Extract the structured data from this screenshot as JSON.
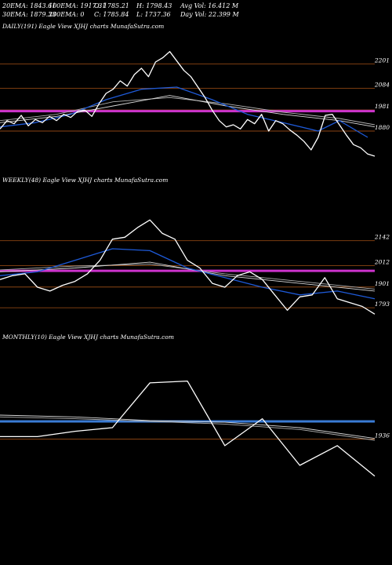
{
  "header": {
    "row1": [
      "20EMA: 1843.61",
      "100EMA: 1917.31",
      "O: 1785.21",
      "H: 1798.43",
      "Avg Vol: 16.412  M"
    ],
    "row2": [
      "30EMA: 1879.33",
      "200EMA: 0",
      "C: 1785.84",
      "L: 1737.36",
      "Day Vol: 22.399 M"
    ]
  },
  "colors": {
    "background": "#000000",
    "price": "#ffffff",
    "ema_fast": "#1e5ad8",
    "ema_slow": "#d8d8d8",
    "level_line": "#8b4513",
    "magenta_band": "#cc33cc",
    "blue_band": "#3a7bd5"
  },
  "chart_data": [
    {
      "type": "line",
      "title": "DAILY(191) Eagle   View  XJHJ charts MunafaSutra.com",
      "yticks": [
        "2201",
        "2084",
        "1981",
        "1880"
      ],
      "ytick_values": [
        2201,
        2084,
        1981,
        1880
      ],
      "ylim": [
        1700,
        2300
      ],
      "xlim": [
        0,
        53
      ],
      "level_lines": [
        2201,
        2084,
        1981,
        1880
      ],
      "band": {
        "value": 1975,
        "color": "magenta"
      },
      "series": [
        {
          "role": "price",
          "color": "#ffffff",
          "x": [
            0,
            1,
            2,
            3,
            4,
            5,
            6,
            7,
            8,
            9,
            10,
            11,
            12,
            13,
            14,
            15,
            16,
            17,
            18,
            19,
            20,
            21,
            22,
            23,
            24,
            25,
            26,
            27,
            28,
            29,
            30,
            31,
            32,
            33,
            34,
            35,
            36,
            37,
            38,
            39,
            40,
            41,
            42,
            43,
            44,
            45,
            46,
            47,
            48,
            49,
            50,
            51,
            52,
            53
          ],
          "values": [
            1890,
            1930,
            1915,
            1955,
            1905,
            1935,
            1920,
            1950,
            1930,
            1960,
            1945,
            1975,
            1980,
            1950,
            2010,
            2060,
            2080,
            2120,
            2095,
            2150,
            2180,
            2140,
            2210,
            2230,
            2260,
            2215,
            2170,
            2140,
            2090,
            2040,
            1980,
            1930,
            1900,
            1910,
            1890,
            1935,
            1915,
            1960,
            1880,
            1930,
            1915,
            1885,
            1860,
            1830,
            1790,
            1850,
            1955,
            1960,
            1910,
            1860,
            1815,
            1800,
            1770,
            1760
          ]
        },
        {
          "role": "ema_fast",
          "color": "#1e5ad8",
          "x": [
            0,
            5,
            10,
            15,
            20,
            25,
            30,
            35,
            40,
            45,
            48,
            52
          ],
          "values": [
            1900,
            1920,
            1960,
            2030,
            2080,
            2090,
            2030,
            1960,
            1920,
            1880,
            1930,
            1850
          ]
        },
        {
          "role": "ema_slow",
          "color": "#d8d8d8",
          "x": [
            0,
            8,
            16,
            24,
            32,
            40,
            48,
            53
          ],
          "values": [
            1920,
            1950,
            2000,
            2050,
            2000,
            1960,
            1930,
            1900
          ]
        },
        {
          "role": "ema_slow2",
          "color": "#b0b0b0",
          "x": [
            0,
            8,
            16,
            24,
            32,
            40,
            48,
            53
          ],
          "values": [
            1930,
            1960,
            2020,
            2040,
            2010,
            1970,
            1940,
            1910
          ]
        }
      ]
    },
    {
      "type": "line",
      "title": "WEEKLY(48) Eagle   View  XJHJ charts MunafaSutra.com",
      "yticks": [
        "2142",
        "2012",
        "1901",
        "1793"
      ],
      "ytick_values": [
        2142,
        2012,
        1901,
        1793
      ],
      "ylim": [
        1700,
        2300
      ],
      "xlim": [
        0,
        30
      ],
      "level_lines": [
        2142,
        2012,
        1901,
        1793
      ],
      "band": {
        "value": 1985,
        "color": "magenta"
      },
      "series": [
        {
          "role": "price",
          "color": "#ffffff",
          "x": [
            0,
            1,
            2,
            3,
            4,
            5,
            6,
            7,
            8,
            9,
            10,
            11,
            12,
            13,
            14,
            15,
            16,
            17,
            18,
            19,
            20,
            21,
            22,
            23,
            24,
            25,
            26,
            27,
            28,
            29,
            30
          ],
          "values": [
            1940,
            1960,
            1970,
            1900,
            1880,
            1910,
            1930,
            1970,
            2040,
            2150,
            2160,
            2210,
            2250,
            2180,
            2150,
            2040,
            2000,
            1920,
            1900,
            1960,
            1980,
            1940,
            1860,
            1780,
            1850,
            1860,
            1950,
            1840,
            1820,
            1800,
            1760
          ]
        },
        {
          "role": "ema_fast",
          "color": "#1e5ad8",
          "x": [
            0,
            3,
            6,
            9,
            12,
            15,
            18,
            21,
            24,
            27,
            30
          ],
          "values": [
            1960,
            1980,
            2040,
            2100,
            2090,
            2000,
            1950,
            1900,
            1860,
            1880,
            1840
          ]
        },
        {
          "role": "ema_slow",
          "color": "#d8d8d8",
          "x": [
            0,
            6,
            12,
            18,
            24,
            30
          ],
          "values": [
            1980,
            2000,
            2030,
            1960,
            1920,
            1880
          ]
        },
        {
          "role": "ema_slow2",
          "color": "#b0b0b0",
          "x": [
            0,
            6,
            12,
            18,
            24,
            30
          ],
          "values": [
            1990,
            2010,
            2020,
            1970,
            1930,
            1890
          ]
        }
      ]
    },
    {
      "type": "line",
      "title": "MONTHLY(10) Eagle   View  XJHJ charts MunafaSutra.com",
      "yticks": [
        "1936"
      ],
      "ytick_values": [
        1936
      ],
      "ylim": [
        1650,
        2350
      ],
      "xlim": [
        0,
        10
      ],
      "level_lines": [
        1936
      ],
      "band": {
        "value": 2035,
        "color": "blue"
      },
      "series": [
        {
          "role": "price",
          "color": "#ffffff",
          "x": [
            0,
            1,
            2,
            3,
            4,
            5,
            6,
            7,
            8,
            9,
            10
          ],
          "values": [
            1950,
            1950,
            1980,
            2000,
            2250,
            2260,
            1900,
            2050,
            1790,
            1900,
            1730
          ]
        },
        {
          "role": "ema_slow",
          "color": "#d8d8d8",
          "x": [
            0,
            2,
            4,
            6,
            8,
            10
          ],
          "values": [
            2070,
            2060,
            2040,
            2030,
            2000,
            1940
          ]
        },
        {
          "role": "ema_slow2",
          "color": "#b0b0b0",
          "x": [
            0,
            2,
            4,
            6,
            8,
            10
          ],
          "values": [
            2060,
            2050,
            2035,
            2020,
            1990,
            1930
          ]
        }
      ]
    }
  ]
}
